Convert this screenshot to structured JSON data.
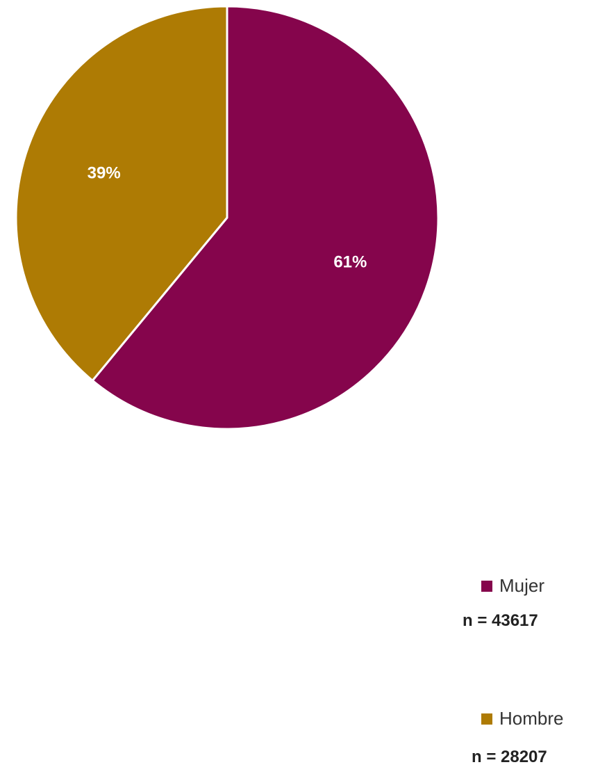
{
  "chart_data": {
    "type": "pie",
    "categories": [
      "Mujer",
      "Hombre"
    ],
    "values": [
      61,
      39
    ],
    "data_labels": [
      "61%",
      "39%"
    ],
    "counts": [
      "n = 43617",
      "n = 28207"
    ],
    "colors": [
      "#85054c",
      "#ae7b04"
    ],
    "start_angle_deg": 0,
    "direction": "clockwise",
    "legend_position": "right"
  },
  "legend": {
    "items": [
      {
        "label": "Mujer",
        "n": "n = 43617",
        "color": "#85054c"
      },
      {
        "label": "Hombre",
        "n": "n = 28207",
        "color": "#ae7b04"
      }
    ]
  }
}
